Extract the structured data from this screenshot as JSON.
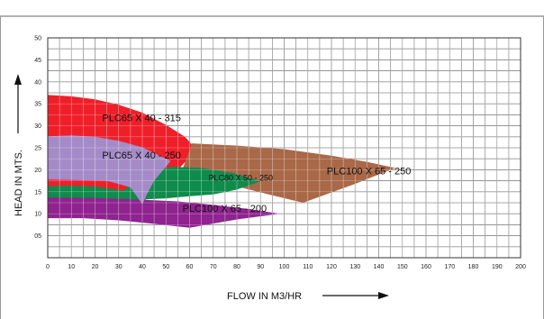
{
  "chart_data": {
    "type": "area",
    "title": "",
    "xlabel": "FLOW IN M3/HR",
    "ylabel": "HEAD IN MTS.",
    "xlim": [
      0,
      200
    ],
    "ylim": [
      0,
      50
    ],
    "x_ticks": [
      "0",
      "10",
      "20",
      "30",
      "40",
      "50",
      "60",
      "70",
      "80",
      "90",
      "100",
      "110",
      "120",
      "130",
      "140",
      "150",
      "160",
      "170",
      "180",
      "190",
      "200"
    ],
    "y_ticks": [
      "05",
      "10",
      "15",
      "20",
      "25",
      "30",
      "35",
      "40",
      "45",
      "50"
    ],
    "grid": true,
    "regions": [
      {
        "name": "PLC65 X 40 - 315",
        "color": "#ef1f2a",
        "label_at": [
          23,
          31
        ],
        "polygon": [
          [
            0,
            37
          ],
          [
            10,
            36.7
          ],
          [
            20,
            36
          ],
          [
            30,
            34.8
          ],
          [
            40,
            33
          ],
          [
            50,
            30.2
          ],
          [
            58,
            27.5
          ],
          [
            63,
            24.5
          ],
          [
            55,
            20
          ],
          [
            45,
            16
          ],
          [
            40,
            12.2
          ],
          [
            0,
            12.2
          ]
        ]
      },
      {
        "name": "PLC100 X 65 - 250",
        "color": "#a96848",
        "label_at": [
          118,
          19
        ],
        "polygon": [
          [
            61,
            26
          ],
          [
            80,
            25.5
          ],
          [
            100,
            24.7
          ],
          [
            120,
            23.2
          ],
          [
            135,
            21.8
          ],
          [
            147,
            20.4
          ],
          [
            130,
            16.8
          ],
          [
            108,
            12.5
          ],
          [
            95,
            14.2
          ],
          [
            80,
            16.2
          ],
          [
            65,
            17.5
          ],
          [
            55,
            17.2
          ]
        ]
      },
      {
        "name": "PLC80 X 50 - 250",
        "color": "#0f8b4c",
        "label_at": [
          68,
          17.5
        ],
        "polygon": [
          [
            0,
            16.3
          ],
          [
            10,
            16.4
          ],
          [
            20,
            16.2
          ],
          [
            32,
            15.3
          ],
          [
            42,
            19
          ],
          [
            52,
            20.7
          ],
          [
            65,
            20.4
          ],
          [
            78,
            19.3
          ],
          [
            90,
            17.4
          ],
          [
            80,
            15.5
          ],
          [
            70,
            14.4
          ],
          [
            60,
            14
          ],
          [
            50,
            13.5
          ],
          [
            30,
            13
          ],
          [
            0,
            13.2
          ]
        ]
      },
      {
        "name": "PLC100 X 65 - 200",
        "color": "#8f238f",
        "label_at": [
          57,
          10.4
        ],
        "polygon": [
          [
            0,
            13.7
          ],
          [
            20,
            13.6
          ],
          [
            40,
            13.2
          ],
          [
            55,
            12.8
          ],
          [
            70,
            12
          ],
          [
            86,
            11
          ],
          [
            98,
            10
          ],
          [
            80,
            8.7
          ],
          [
            60,
            6.8
          ],
          [
            45,
            7.7
          ],
          [
            30,
            8.5
          ],
          [
            15,
            9
          ],
          [
            0,
            9
          ]
        ]
      },
      {
        "name": "PLC65 X 40 - 250",
        "color": "#a48bc8",
        "label_at": [
          23,
          22.5
        ],
        "polygon": [
          [
            0,
            27.6
          ],
          [
            10,
            27.8
          ],
          [
            20,
            27.5
          ],
          [
            30,
            26.6
          ],
          [
            40,
            25.1
          ],
          [
            52,
            22
          ],
          [
            45,
            17.5
          ],
          [
            42,
            14.5
          ],
          [
            40,
            12.2
          ],
          [
            35,
            16
          ],
          [
            25,
            17.5
          ],
          [
            0,
            17.8
          ]
        ]
      }
    ]
  }
}
